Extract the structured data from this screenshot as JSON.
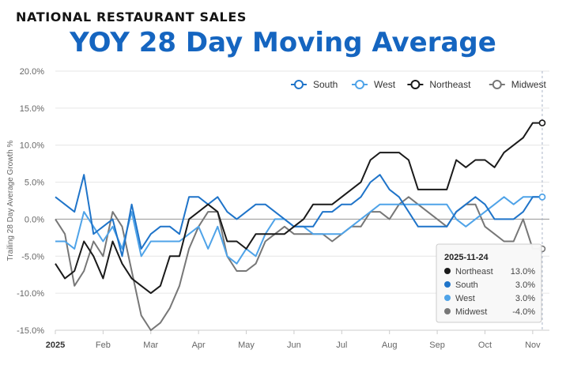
{
  "header": {
    "supertitle": "NATIONAL RESTAURANT SALES",
    "title": "YOY 28 Day Moving Average"
  },
  "colors": {
    "title": "#1565c0",
    "South": "#1f74c9",
    "West": "#4fa3e8",
    "Northeast": "#1a1a1a",
    "Midwest": "#777777"
  },
  "chart_data": {
    "type": "line",
    "ylabel": "Trailing 28 Day Average Growth %",
    "xlabel": "",
    "ylim": [
      -15,
      20
    ],
    "yticks": [
      20,
      15,
      10,
      5,
      0,
      -5,
      -10,
      -15
    ],
    "ytick_labels": [
      "20.0%",
      "15.0%",
      "10.0%",
      "5.0%",
      "0.0%",
      "-5.0%",
      "-10.0%",
      "-15.0%"
    ],
    "xlim": [
      0,
      10.35
    ],
    "xticks": [
      {
        "pos": 0,
        "label": "2025",
        "bold": true
      },
      {
        "pos": 1,
        "label": "Feb"
      },
      {
        "pos": 2,
        "label": "Mar"
      },
      {
        "pos": 3,
        "label": "Apr"
      },
      {
        "pos": 4,
        "label": "May"
      },
      {
        "pos": 5,
        "label": "Jun"
      },
      {
        "pos": 6,
        "label": "Jul"
      },
      {
        "pos": 7,
        "label": "Aug"
      },
      {
        "pos": 8,
        "label": "Sep"
      },
      {
        "pos": 9,
        "label": "Oct"
      },
      {
        "pos": 10,
        "label": "Nov"
      }
    ],
    "grid": "y",
    "legend_position": "top-right",
    "series": [
      {
        "name": "South",
        "x": [
          0.0,
          0.2,
          0.4,
          0.6,
          0.8,
          1.0,
          1.2,
          1.4,
          1.6,
          1.8,
          2.0,
          2.2,
          2.4,
          2.6,
          2.8,
          3.0,
          3.2,
          3.4,
          3.6,
          3.8,
          4.0,
          4.2,
          4.4,
          4.6,
          4.8,
          5.0,
          5.2,
          5.4,
          5.6,
          5.8,
          6.0,
          6.2,
          6.4,
          6.6,
          6.8,
          7.0,
          7.2,
          7.4,
          7.6,
          7.8,
          8.0,
          8.2,
          8.4,
          8.6,
          8.8,
          9.0,
          9.2,
          9.4,
          9.6,
          9.8,
          10.0,
          10.2
        ],
        "y": [
          3,
          2,
          1,
          6,
          -2,
          -1,
          0,
          -5,
          2,
          -4,
          -2,
          -1,
          -1,
          -2,
          3,
          3,
          2,
          3,
          1,
          0,
          1,
          2,
          2,
          1,
          0,
          -1,
          -1,
          -1,
          1,
          1,
          2,
          2,
          3,
          5,
          6,
          4,
          3,
          1,
          -1,
          -1,
          -1,
          -1,
          1,
          2,
          3,
          2,
          0,
          0,
          0,
          1,
          3,
          3
        ]
      },
      {
        "name": "West",
        "x": [
          0.0,
          0.2,
          0.4,
          0.6,
          0.8,
          1.0,
          1.2,
          1.4,
          1.6,
          1.8,
          2.0,
          2.2,
          2.4,
          2.6,
          2.8,
          3.0,
          3.2,
          3.4,
          3.6,
          3.8,
          4.0,
          4.2,
          4.4,
          4.6,
          4.8,
          5.0,
          5.2,
          5.4,
          5.6,
          5.8,
          6.0,
          6.2,
          6.4,
          6.6,
          6.8,
          7.0,
          7.2,
          7.4,
          7.6,
          7.8,
          8.0,
          8.2,
          8.4,
          8.6,
          8.8,
          9.0,
          9.2,
          9.4,
          9.6,
          9.8,
          10.0,
          10.2
        ],
        "y": [
          -3,
          -3,
          -4,
          1,
          -1,
          -3,
          -1,
          -4,
          1,
          -5,
          -3,
          -3,
          -3,
          -3,
          -2,
          -1,
          -4,
          -1,
          -5,
          -6,
          -4,
          -5,
          -2,
          0,
          0,
          -1,
          -1,
          -2,
          -2,
          -2,
          -2,
          -1,
          0,
          1,
          2,
          2,
          2,
          2,
          2,
          2,
          2,
          2,
          0,
          -1,
          0,
          1,
          2,
          3,
          2,
          3,
          3,
          3
        ]
      },
      {
        "name": "Northeast",
        "x": [
          0.0,
          0.2,
          0.4,
          0.6,
          0.8,
          1.0,
          1.2,
          1.4,
          1.6,
          1.8,
          2.0,
          2.2,
          2.4,
          2.6,
          2.8,
          3.0,
          3.2,
          3.4,
          3.6,
          3.8,
          4.0,
          4.2,
          4.4,
          4.6,
          4.8,
          5.0,
          5.2,
          5.4,
          5.6,
          5.8,
          6.0,
          6.2,
          6.4,
          6.6,
          6.8,
          7.0,
          7.2,
          7.4,
          7.6,
          7.8,
          8.0,
          8.2,
          8.4,
          8.6,
          8.8,
          9.0,
          9.2,
          9.4,
          9.6,
          9.8,
          10.0,
          10.2
        ],
        "y": [
          -6,
          -8,
          -7,
          -3,
          -5,
          -8,
          -3,
          -6,
          -8,
          -9,
          -10,
          -9,
          -5,
          -5,
          0,
          1,
          2,
          1,
          -3,
          -3,
          -4,
          -2,
          -2,
          -2,
          -2,
          -1,
          0,
          2,
          2,
          2,
          3,
          4,
          5,
          8,
          9,
          9,
          9,
          8,
          4,
          4,
          4,
          4,
          8,
          7,
          8,
          8,
          7,
          9,
          10,
          11,
          13,
          13
        ]
      },
      {
        "name": "Midwest",
        "x": [
          0.0,
          0.2,
          0.4,
          0.6,
          0.8,
          1.0,
          1.2,
          1.4,
          1.6,
          1.8,
          2.0,
          2.2,
          2.4,
          2.6,
          2.8,
          3.0,
          3.2,
          3.4,
          3.6,
          3.8,
          4.0,
          4.2,
          4.4,
          4.6,
          4.8,
          5.0,
          5.2,
          5.4,
          5.6,
          5.8,
          6.0,
          6.2,
          6.4,
          6.6,
          6.8,
          7.0,
          7.2,
          7.4,
          7.6,
          7.8,
          8.0,
          8.2,
          8.4,
          8.6,
          8.8,
          9.0,
          9.2,
          9.4,
          9.6,
          9.8,
          10.0,
          10.2
        ],
        "y": [
          0,
          -2,
          -9,
          -7,
          -3,
          -5,
          1,
          -1,
          -7,
          -13,
          -15,
          -14,
          -12,
          -9,
          -4,
          -1,
          1,
          1,
          -5,
          -7,
          -7,
          -6,
          -3,
          -2,
          -1,
          -2,
          -2,
          -2,
          -2,
          -3,
          -2,
          -1,
          -1,
          1,
          1,
          0,
          2,
          3,
          2,
          1,
          0,
          -1,
          1,
          2,
          2,
          -1,
          -2,
          -3,
          -3,
          0,
          -4,
          -4
        ]
      }
    ],
    "tooltip": {
      "date": "2025-11-24",
      "rows": [
        {
          "name": "Northeast",
          "value": "13.0%"
        },
        {
          "name": "South",
          "value": "3.0%"
        },
        {
          "name": "West",
          "value": "3.0%"
        },
        {
          "name": "Midwest",
          "value": "-4.0%"
        }
      ]
    }
  }
}
